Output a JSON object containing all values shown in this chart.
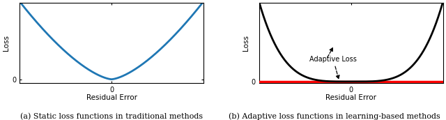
{
  "fig_width": 6.4,
  "fig_height": 1.72,
  "dpi": 100,
  "left_curve_color": "#1f77b4",
  "right_curve_color": "#000000",
  "right_flat_color": "#ff0000",
  "left_xlabel": "Residual Error",
  "right_xlabel": "Residual Error",
  "left_ylabel": "Loss",
  "right_ylabel": "Loss",
  "left_caption": "(a) Static loss functions in traditional methods",
  "right_caption": "(b) Adaptive loss functions in learning-based methods",
  "annotation_text": "Adaptive Loss",
  "left_xtick": "0",
  "right_xtick": "0",
  "left_ytick": "0",
  "right_ytick": "0",
  "caption_fontsize": 8.0,
  "label_fontsize": 7.5,
  "tick_fontsize": 7.0,
  "spine_linewidth": 0.8,
  "curve_linewidth": 2.0,
  "red_linewidth": 2.5
}
